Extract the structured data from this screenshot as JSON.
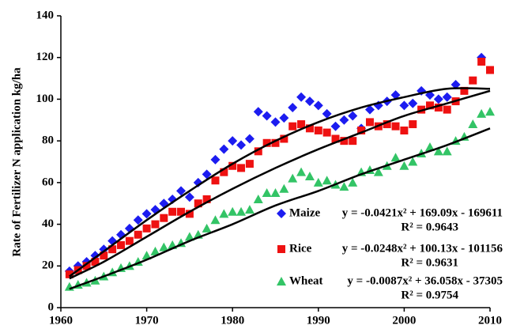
{
  "chart_data": {
    "type": "scatter",
    "y_label": "Rate of Fertilizer N application kg/ha",
    "xlim": [
      1960,
      2010
    ],
    "xticks": [
      1960,
      1970,
      1980,
      1990,
      2000,
      2010
    ],
    "ylim": [
      0,
      140
    ],
    "yticks": [
      0,
      20,
      40,
      60,
      80,
      100,
      120,
      140
    ],
    "grid": false,
    "legend": "lower right",
    "series": [
      {
        "name": "Maize",
        "color": "#1c1cf0",
        "marker": "diamond",
        "equation": "y = -0.0421x² + 169.09x - 169611",
        "r2": "R² = 0.9643",
        "x": [
          1961,
          1962,
          1963,
          1964,
          1965,
          1966,
          1967,
          1968,
          1969,
          1970,
          1971,
          1972,
          1973,
          1974,
          1975,
          1976,
          1977,
          1978,
          1979,
          1980,
          1981,
          1982,
          1983,
          1984,
          1985,
          1986,
          1987,
          1988,
          1989,
          1990,
          1991,
          1992,
          1993,
          1994,
          1995,
          1996,
          1997,
          1998,
          1999,
          2000,
          2001,
          2002,
          2003,
          2004,
          2005,
          2006,
          2009
        ],
        "values": [
          17.5,
          20,
          22,
          25,
          28,
          32,
          35,
          38,
          42,
          45,
          47,
          50,
          52,
          56,
          53,
          60,
          64,
          71,
          76,
          80,
          78,
          81,
          94,
          92,
          89,
          91,
          96,
          101,
          99,
          97,
          93,
          87,
          90,
          92,
          86,
          95,
          97,
          99,
          102,
          97,
          98,
          104,
          102,
          100,
          101,
          107,
          120
        ],
        "trend_x": [
          1961,
          1965,
          1970,
          1975,
          1980,
          1985,
          1990,
          1995,
          2000,
          2005,
          2010
        ],
        "trend": [
          15,
          27,
          42,
          56,
          69,
          80,
          89,
          96,
          101,
          105,
          105
        ]
      },
      {
        "name": "Rice",
        "color": "#ee1111",
        "marker": "square",
        "equation": "y = -0.0248x² + 100.13x - 101156",
        "r2": "R² = 0.9631",
        "x": [
          1961,
          1962,
          1963,
          1964,
          1965,
          1966,
          1967,
          1968,
          1969,
          1970,
          1971,
          1972,
          1973,
          1974,
          1975,
          1976,
          1977,
          1978,
          1979,
          1980,
          1981,
          1982,
          1983,
          1984,
          1985,
          1986,
          1987,
          1988,
          1989,
          1990,
          1991,
          1992,
          1993,
          1994,
          1995,
          1996,
          1997,
          1998,
          1999,
          2000,
          2001,
          2002,
          2003,
          2004,
          2005,
          2006,
          2007,
          2008,
          2009,
          2010
        ],
        "values": [
          16,
          18,
          20,
          22,
          25,
          28,
          30,
          32,
          35,
          38,
          40,
          43,
          46,
          46,
          45,
          50,
          52,
          61,
          65,
          68,
          67,
          69,
          75,
          79,
          79,
          81,
          87,
          88,
          86,
          85,
          84,
          81,
          80,
          80,
          85,
          89,
          87,
          88,
          87,
          85,
          88,
          95,
          97,
          96,
          95,
          99,
          104,
          109,
          118,
          114
        ],
        "trend_x": [
          1961,
          1965,
          1970,
          1975,
          1980,
          1985,
          1990,
          1995,
          2000,
          2005,
          2010
        ],
        "trend": [
          14,
          22,
          34,
          46,
          57,
          67,
          76,
          84,
          92,
          98,
          104
        ]
      },
      {
        "name": "Wheat",
        "color": "#33c466",
        "marker": "triangle",
        "equation": "y = -0.0087x² + 36.058x - 37305",
        "r2": "R² = 0.9754",
        "x": [
          1961,
          1962,
          1963,
          1964,
          1965,
          1966,
          1967,
          1968,
          1969,
          1970,
          1971,
          1972,
          1973,
          1974,
          1975,
          1976,
          1977,
          1978,
          1979,
          1980,
          1981,
          1982,
          1983,
          1984,
          1985,
          1986,
          1987,
          1988,
          1989,
          1990,
          1991,
          1992,
          1993,
          1994,
          1995,
          1996,
          1997,
          1998,
          1999,
          2000,
          2001,
          2002,
          2003,
          2004,
          2005,
          2006,
          2007,
          2008,
          2009,
          2010
        ],
        "values": [
          10,
          11,
          12,
          13,
          15,
          17,
          19,
          20,
          22,
          25,
          27,
          29,
          30,
          31,
          34,
          35,
          38,
          42,
          45,
          46,
          46,
          47,
          52,
          55,
          55,
          57,
          62,
          65,
          63,
          60,
          61,
          59,
          58,
          60,
          65,
          66,
          65,
          68,
          72,
          68,
          70,
          74,
          77,
          75,
          75,
          80,
          82,
          88,
          93,
          94
        ],
        "trend_x": [
          1961,
          1965,
          1970,
          1975,
          1980,
          1985,
          1990,
          1995,
          2000,
          2005,
          2010
        ],
        "trend": [
          9,
          15,
          23,
          32,
          40,
          49,
          56,
          64,
          71,
          78,
          86
        ]
      }
    ]
  }
}
